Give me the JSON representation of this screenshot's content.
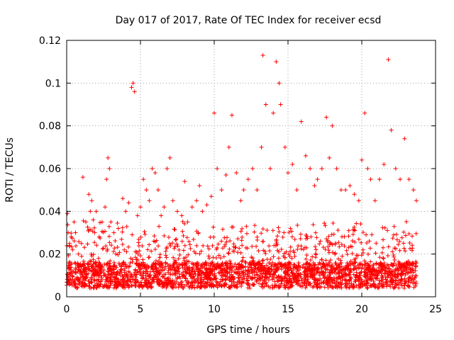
{
  "chart_data": {
    "type": "scatter",
    "title": "Day 017 of 2017, Rate Of TEC Index for receiver ecsd",
    "xlabel": "GPS time / hours",
    "ylabel": "ROTI / TECUs",
    "xlim": [
      0,
      25
    ],
    "ylim": [
      0,
      0.12
    ],
    "x_ticks": [
      0,
      5,
      10,
      15,
      20,
      25
    ],
    "y_ticks": [
      0,
      0.02,
      0.04,
      0.06,
      0.08,
      0.1,
      0.12
    ],
    "x_tick_labels": [
      "0",
      "5",
      "10",
      "15",
      "20",
      "25"
    ],
    "y_tick_labels": [
      "0",
      "0.02",
      "0.04",
      "0.06",
      "0.08",
      "0.1",
      "0.12"
    ],
    "grid": true,
    "marker": "plus",
    "color": "#ff0000",
    "series": [
      {
        "x": [
          0.05,
          0.1,
          0.2,
          0.3,
          0.4,
          0.5,
          0.6,
          0.8,
          1.0,
          1.1,
          1.3,
          1.5,
          1.6,
          1.7,
          1.8,
          1.9,
          2.0,
          2.2,
          2.4,
          2.6,
          2.7,
          2.8,
          2.9,
          3.0,
          3.2,
          3.5,
          3.8,
          4.0,
          4.2,
          4.4,
          4.5,
          4.6,
          4.8,
          5.0,
          5.2,
          5.4,
          5.6,
          5.8,
          6.0,
          6.2,
          6.4,
          6.6,
          6.8,
          7.0,
          7.2,
          7.5,
          7.8,
          8.0,
          8.2,
          8.5,
          8.8,
          9.0,
          9.2,
          9.5,
          9.8,
          10.0,
          10.2,
          10.5,
          10.8,
          11.0,
          11.2,
          11.5,
          11.8,
          12.0,
          12.3,
          12.6,
          12.9,
          13.2,
          13.3,
          13.5,
          13.8,
          14.0,
          14.2,
          14.4,
          14.5,
          14.8,
          15.0,
          15.3,
          15.6,
          15.9,
          16.2,
          16.5,
          16.8,
          17.0,
          17.3,
          17.6,
          17.8,
          18.0,
          18.3,
          18.6,
          18.9,
          19.2,
          19.5,
          19.8,
          20.0,
          20.2,
          20.4,
          20.6,
          20.9,
          21.2,
          21.5,
          21.8,
          22.0,
          22.3,
          22.6,
          22.9,
          23.2,
          23.5,
          23.7
        ],
        "y": [
          0.039,
          0.03,
          0.025,
          0.028,
          0.022,
          0.035,
          0.03,
          0.02,
          0.025,
          0.056,
          0.035,
          0.048,
          0.04,
          0.045,
          0.036,
          0.03,
          0.04,
          0.028,
          0.035,
          0.042,
          0.055,
          0.065,
          0.06,
          0.035,
          0.03,
          0.032,
          0.046,
          0.04,
          0.044,
          0.098,
          0.1,
          0.096,
          0.038,
          0.042,
          0.055,
          0.05,
          0.045,
          0.06,
          0.058,
          0.05,
          0.038,
          0.042,
          0.06,
          0.065,
          0.045,
          0.04,
          0.038,
          0.054,
          0.035,
          0.042,
          0.045,
          0.052,
          0.04,
          0.043,
          0.047,
          0.086,
          0.06,
          0.05,
          0.057,
          0.07,
          0.085,
          0.058,
          0.045,
          0.05,
          0.055,
          0.06,
          0.05,
          0.07,
          0.113,
          0.09,
          0.06,
          0.086,
          0.11,
          0.1,
          0.09,
          0.07,
          0.058,
          0.062,
          0.05,
          0.082,
          0.066,
          0.06,
          0.052,
          0.055,
          0.06,
          0.084,
          0.065,
          0.08,
          0.06,
          0.05,
          0.05,
          0.052,
          0.048,
          0.045,
          0.064,
          0.086,
          0.06,
          0.055,
          0.045,
          0.055,
          0.062,
          0.111,
          0.078,
          0.06,
          0.055,
          0.074,
          0.055,
          0.05,
          0.045
        ]
      }
    ]
  }
}
